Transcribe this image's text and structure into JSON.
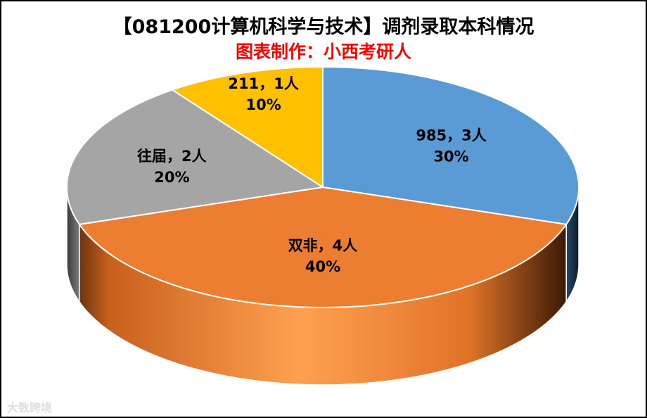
{
  "chart_data": {
    "type": "pie",
    "title": "【081200计算机科学与技术】调剂录取本科情况",
    "subtitle": "图表制作：小西考研人",
    "categories": [
      "985",
      "双非",
      "往届",
      "211"
    ],
    "values": [
      3,
      4,
      2,
      1
    ],
    "percents": [
      30,
      40,
      20,
      10
    ],
    "colors": [
      "#5b9bd5",
      "#ed7d31",
      "#a5a5a5",
      "#ffc000"
    ],
    "labels": [
      {
        "line1": "985，3人",
        "line2": "30%"
      },
      {
        "line1": "双非，4人",
        "line2": "40%"
      },
      {
        "line1": "往届，2人",
        "line2": "20%"
      },
      {
        "line1": "211，1人",
        "line2": "10%"
      }
    ],
    "three_d": true
  },
  "watermark": "大数跨境"
}
